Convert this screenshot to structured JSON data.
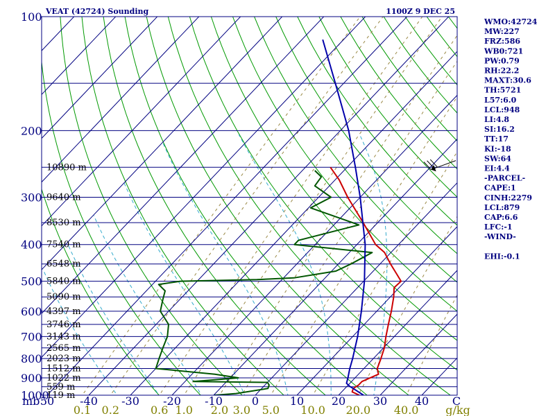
{
  "header": {
    "title": "VEAT (42724) Sounding",
    "time": "1100Z  9 DEC 25"
  },
  "indices": [
    "WMO:42724",
    "MW:227",
    "FRZ:586",
    "WB0:721",
    "PW:0.79",
    "RH:22.2",
    "MAXT:30.6",
    "TH:5721",
    "L57:6.0",
    "LCL:948",
    "LI:4.8",
    "SI:16.2",
    "TT:17",
    "KI:-18",
    "SW:64",
    "EI:4.4",
    "-PARCEL-",
    "CAPE:1",
    "CINH:2279",
    "LCL:879",
    "CAP:6.6",
    "LFC:-1",
    "-WIND-",
    "",
    "EHI:-0.1"
  ],
  "colors": {
    "background": "#ffffff",
    "frame": "#000080",
    "isobar": "#000080",
    "isotherm": "#000080",
    "dry_adiabat": "#009900",
    "moist_adiabat": "#33aacc",
    "mixing_ratio": "#998844",
    "temperature": "#cc0000",
    "dewpoint": "#005500",
    "parcel": "#0000aa",
    "wind_barb": "#000000"
  },
  "chart_data": {
    "type": "skew-t log-p sounding",
    "y_axis": {
      "unit": "mb",
      "scale": "log",
      "range": [
        1000,
        100
      ],
      "ticks": [
        100,
        200,
        300,
        400,
        500,
        600,
        700,
        800,
        900,
        1000
      ]
    },
    "x_axis": {
      "unit": "C",
      "range": [
        -50,
        50
      ],
      "ticks": [
        "50",
        "-40",
        "-30",
        "-20",
        "-10",
        "0",
        "10",
        "20",
        "30",
        "40",
        "C"
      ]
    },
    "mixing_ratio_axis": {
      "unit": "g/kg",
      "ticks": [
        "0.1",
        "0.2",
        "0.6",
        "1.0",
        "2.0",
        "3.0",
        "5.0",
        "10.0",
        "20.0",
        "40.0"
      ]
    },
    "unit_labels": {
      "pressure": "mb",
      "mixing_ratio": "g/kg"
    },
    "isobars": [
      100,
      150,
      200,
      250,
      300,
      350,
      400,
      450,
      500,
      550,
      600,
      650,
      700,
      750,
      800,
      850,
      900,
      950,
      1000
    ],
    "height_labels": [
      {
        "p": 250,
        "label": "10890 m"
      },
      {
        "p": 300,
        "label": "9640 m"
      },
      {
        "p": 350,
        "label": "8530 m"
      },
      {
        "p": 400,
        "label": "7540 m"
      },
      {
        "p": 450,
        "label": "6548 m"
      },
      {
        "p": 500,
        "label": "5840 m"
      },
      {
        "p": 550,
        "label": "5090 m"
      },
      {
        "p": 600,
        "label": "4397 m"
      },
      {
        "p": 650,
        "label": "3746 m"
      },
      {
        "p": 700,
        "label": "3143 m"
      },
      {
        "p": 750,
        "label": "2565 m"
      },
      {
        "p": 800,
        "label": "2023 m"
      },
      {
        "p": 850,
        "label": "1512 m"
      },
      {
        "p": 900,
        "label": "1022 m"
      },
      {
        "p": 950,
        "label": "559 m"
      },
      {
        "p": 1000,
        "label": "119 m"
      }
    ],
    "series": [
      {
        "name": "temperature",
        "points": [
          [
            1000,
            25.0
          ],
          [
            980,
            22.5
          ],
          [
            960,
            22.0
          ],
          [
            940,
            22.5
          ],
          [
            920,
            22.5
          ],
          [
            880,
            24.8
          ],
          [
            850,
            23.2
          ],
          [
            800,
            21.8
          ],
          [
            750,
            20.2
          ],
          [
            700,
            18.0
          ],
          [
            650,
            15.8
          ],
          [
            600,
            13.5
          ],
          [
            550,
            10.8
          ],
          [
            520,
            8.8
          ],
          [
            500,
            9.0
          ],
          [
            480,
            6.5
          ],
          [
            450,
            2.5
          ],
          [
            420,
            -1.5
          ],
          [
            400,
            -5.5
          ],
          [
            350,
            -13.5
          ],
          [
            300,
            -23.0
          ],
          [
            270,
            -29.0
          ],
          [
            250,
            -34.0
          ]
        ]
      },
      {
        "name": "dewpoint",
        "points": [
          [
            1000,
            -9.8
          ],
          [
            990,
            -5.0
          ],
          [
            960,
            1.5
          ],
          [
            940,
            1.0
          ],
          [
            925,
            0.0
          ],
          [
            920,
            -18.0
          ],
          [
            900,
            -8.0
          ],
          [
            880,
            -14.5
          ],
          [
            850,
            -30.0
          ],
          [
            800,
            -31.5
          ],
          [
            750,
            -33.0
          ],
          [
            700,
            -34.5
          ],
          [
            650,
            -37.0
          ],
          [
            600,
            -42.0
          ],
          [
            560,
            -44.0
          ],
          [
            530,
            -45.5
          ],
          [
            510,
            -48.5
          ],
          [
            500,
            -44.0
          ],
          [
            495,
            -26.0
          ],
          [
            490,
            -17.5
          ],
          [
            470,
            -9.0
          ],
          [
            450,
            -7.0
          ],
          [
            420,
            -4.5
          ],
          [
            400,
            -25.0
          ],
          [
            390,
            -25.0
          ],
          [
            355,
            -14.0
          ],
          [
            320,
            -29.5
          ],
          [
            300,
            -27.0
          ],
          [
            280,
            -33.5
          ],
          [
            265,
            -34.0
          ],
          [
            255,
            -37.0
          ]
        ]
      },
      {
        "name": "parcel",
        "points": [
          [
            1000,
            26.0
          ],
          [
            980,
            24.0
          ],
          [
            960,
            22.0
          ],
          [
            948,
            20.7
          ],
          [
            930,
            19.2
          ],
          [
            900,
            18.3
          ],
          [
            850,
            16.6
          ],
          [
            800,
            15.0
          ],
          [
            700,
            11.2
          ],
          [
            600,
            6.3
          ],
          [
            500,
            0.2
          ],
          [
            400,
            -8.0
          ],
          [
            300,
            -20.0
          ],
          [
            250,
            -28.0
          ],
          [
            200,
            -38.0
          ],
          [
            150,
            -52.0
          ],
          [
            115,
            -65.0
          ]
        ]
      }
    ],
    "wind_barbs": [
      {
        "p": 240,
        "direction_deg": 250,
        "speed_kt": 30
      }
    ]
  }
}
